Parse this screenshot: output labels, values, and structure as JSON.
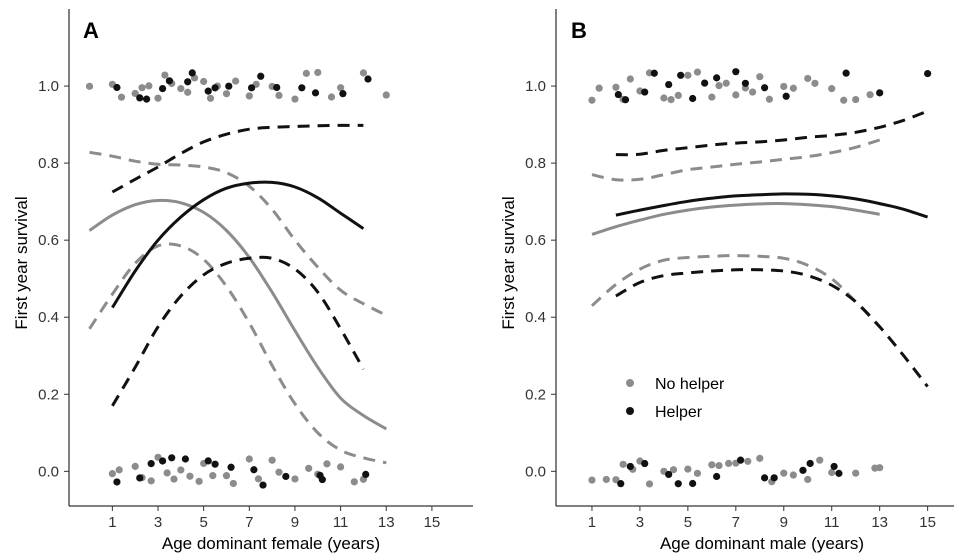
{
  "chart_data": [
    {
      "type": "line",
      "panel_label": "A",
      "xlabel": "Age dominant female (years)",
      "ylabel": "First year survival",
      "x_ticks": [
        1,
        3,
        5,
        7,
        9,
        11,
        13,
        15
      ],
      "y_ticks": [
        0.0,
        0.2,
        0.4,
        0.6,
        0.8,
        1.0
      ],
      "xlim": [
        -0.9,
        16.8
      ],
      "ylim": [
        -0.09,
        1.2
      ],
      "grid": false,
      "series": [
        {
          "group": "No helper",
          "color": "#8c8c8c",
          "fit": {
            "x": [
              0,
              1,
              2,
              3,
              4,
              5,
              6,
              7,
              8,
              9,
              10,
              11,
              12,
              13
            ],
            "y": [
              0.625,
              0.665,
              0.692,
              0.703,
              0.697,
              0.672,
              0.625,
              0.555,
              0.465,
              0.365,
              0.27,
              0.19,
              0.145,
              0.11
            ]
          },
          "ci_upper": {
            "x": [
              0,
              1,
              2,
              3,
              4,
              5,
              6,
              7,
              8,
              9,
              10,
              11,
              12,
              13
            ],
            "y": [
              0.828,
              0.818,
              0.805,
              0.797,
              0.795,
              0.79,
              0.775,
              0.74,
              0.68,
              0.6,
              0.53,
              0.47,
              0.435,
              0.405
            ]
          },
          "ci_lower": {
            "x": [
              0,
              1,
              2,
              3,
              4,
              5,
              6,
              7,
              8,
              9,
              10,
              11,
              12,
              13
            ],
            "y": [
              0.37,
              0.46,
              0.54,
              0.585,
              0.585,
              0.55,
              0.48,
              0.385,
              0.275,
              0.175,
              0.1,
              0.055,
              0.035,
              0.022
            ]
          }
        },
        {
          "group": "Helper",
          "color": "#111111",
          "fit": {
            "x": [
              1,
              2,
              3,
              4,
              5,
              6,
              7,
              8,
              9,
              10,
              11,
              12
            ],
            "y": [
              0.425,
              0.52,
              0.6,
              0.66,
              0.705,
              0.735,
              0.748,
              0.75,
              0.738,
              0.71,
              0.67,
              0.63
            ]
          },
          "ci_upper": {
            "x": [
              1,
              2,
              3,
              4,
              5,
              6,
              7,
              8,
              9,
              10,
              11,
              12
            ],
            "y": [
              0.725,
              0.758,
              0.79,
              0.825,
              0.855,
              0.875,
              0.888,
              0.893,
              0.895,
              0.897,
              0.898,
              0.898
            ]
          },
          "ci_lower": {
            "x": [
              1,
              2,
              3,
              4,
              5,
              6,
              7,
              8,
              9,
              10,
              11,
              12
            ],
            "y": [
              0.17,
              0.27,
              0.375,
              0.455,
              0.51,
              0.54,
              0.553,
              0.553,
              0.525,
              0.465,
              0.37,
              0.265
            ]
          }
        }
      ],
      "points": {
        "No helper": {
          "survived_1": [
            0,
            1,
            1.4,
            2,
            2.3,
            2.6,
            3,
            3.3,
            3.6,
            4,
            4.3,
            4.6,
            5,
            5.3,
            5.6,
            6,
            6.4,
            7,
            7.3,
            8,
            8.3,
            9,
            9.5,
            10,
            10.6,
            11,
            12,
            13
          ],
          "survived_0": [
            1,
            1.3,
            2,
            2.3,
            2.7,
            3,
            3.4,
            3.7,
            4,
            4.4,
            4.8,
            5,
            5.4,
            6,
            6.3,
            7,
            7.4,
            8,
            8.3,
            9,
            9.6,
            10,
            10.4,
            11,
            11.6,
            12
          ]
        },
        "Helper": {
          "survived_1": [
            1.2,
            2.2,
            2.5,
            3.2,
            3.5,
            4.3,
            4.5,
            5.2,
            5.5,
            6.1,
            7.1,
            7.5,
            8.2,
            9.3,
            9.9,
            11.1,
            12.2
          ],
          "survived_0": [
            1.2,
            2.2,
            2.7,
            3.2,
            3.6,
            4.2,
            5.2,
            5.5,
            6.2,
            7.2,
            7.6,
            8.6,
            10.1,
            10.2,
            12.1
          ]
        }
      }
    },
    {
      "type": "line",
      "panel_label": "B",
      "xlabel": "Age dominant male (years)",
      "ylabel": "First year survival",
      "x_ticks": [
        1,
        3,
        5,
        7,
        9,
        11,
        13,
        15
      ],
      "y_ticks": [
        0.0,
        0.2,
        0.4,
        0.6,
        0.8,
        1.0
      ],
      "xlim": [
        -0.5,
        16.1
      ],
      "ylim": [
        -0.09,
        1.2
      ],
      "grid": false,
      "legend": {
        "position": "bottom-left",
        "entries": [
          {
            "label": "No helper",
            "color": "#8c8c8c"
          },
          {
            "label": "Helper",
            "color": "#111111"
          }
        ]
      },
      "series": [
        {
          "group": "No helper",
          "color": "#8c8c8c",
          "fit": {
            "x": [
              1,
              2,
              3,
              4,
              5,
              6,
              7,
              8,
              9,
              10,
              11,
              12,
              13
            ],
            "y": [
              0.615,
              0.635,
              0.652,
              0.667,
              0.678,
              0.686,
              0.691,
              0.694,
              0.695,
              0.692,
              0.687,
              0.678,
              0.667
            ]
          },
          "ci_upper": {
            "x": [
              1,
              2,
              3,
              4,
              5,
              6,
              7,
              8,
              9,
              10,
              11,
              12,
              13
            ],
            "y": [
              0.77,
              0.757,
              0.758,
              0.77,
              0.783,
              0.79,
              0.797,
              0.803,
              0.81,
              0.817,
              0.827,
              0.841,
              0.86
            ]
          },
          "ci_lower": {
            "x": [
              1,
              2,
              3,
              4,
              5,
              6,
              7,
              8,
              9,
              10,
              11,
              12,
              13
            ],
            "y": [
              0.43,
              0.485,
              0.525,
              0.548,
              0.555,
              0.558,
              0.56,
              0.558,
              0.553,
              0.535,
              0.5,
              0.44,
              0.375
            ]
          }
        },
        {
          "group": "Helper",
          "color": "#111111",
          "fit": {
            "x": [
              2,
              3,
              4,
              5,
              6,
              7,
              8,
              9,
              10,
              11,
              12,
              13,
              14,
              15
            ],
            "y": [
              0.665,
              0.678,
              0.69,
              0.701,
              0.709,
              0.715,
              0.718,
              0.72,
              0.719,
              0.715,
              0.707,
              0.695,
              0.68,
              0.66
            ]
          },
          "ci_upper": {
            "x": [
              2,
              3,
              4,
              5,
              6,
              7,
              8,
              9,
              10,
              11,
              12,
              13,
              14,
              15
            ],
            "y": [
              0.822,
              0.823,
              0.833,
              0.84,
              0.847,
              0.852,
              0.855,
              0.86,
              0.867,
              0.872,
              0.88,
              0.893,
              0.911,
              0.935
            ]
          },
          "ci_lower": {
            "x": [
              2,
              3,
              4,
              5,
              6,
              7,
              8,
              9,
              10,
              11,
              12,
              13,
              14,
              15
            ],
            "y": [
              0.455,
              0.49,
              0.508,
              0.515,
              0.52,
              0.523,
              0.523,
              0.52,
              0.508,
              0.483,
              0.44,
              0.375,
              0.3,
              0.22
            ]
          }
        }
      ],
      "points": {
        "No helper": {
          "survived_1": [
            1,
            1.3,
            2,
            2.3,
            2.6,
            3,
            3.4,
            4,
            4.3,
            4.6,
            5,
            5.4,
            6,
            6.3,
            6.6,
            7,
            7.4,
            7.7,
            8,
            8.4,
            9,
            9.4,
            10,
            10.3,
            11,
            11.5,
            12,
            12.6
          ],
          "survived_0": [
            1,
            1.6,
            2,
            2.3,
            2.7,
            3,
            3.4,
            4,
            4.4,
            5,
            5.4,
            6,
            6.3,
            6.7,
            7,
            7.5,
            8,
            8.5,
            9,
            9.4,
            10,
            10.5,
            11,
            12,
            12.8,
            13
          ]
        },
        "Helper": {
          "survived_1": [
            2.1,
            2.4,
            3.2,
            3.6,
            4.2,
            4.7,
            5.2,
            5.7,
            6.2,
            7,
            7.4,
            8.2,
            9.1,
            11.6,
            13,
            15
          ],
          "survived_0": [
            2.2,
            2.6,
            3.2,
            4.2,
            4.6,
            5.2,
            6.2,
            7.2,
            8.2,
            8.6,
            9.8,
            10.1,
            11.1,
            11.3
          ]
        }
      }
    }
  ]
}
